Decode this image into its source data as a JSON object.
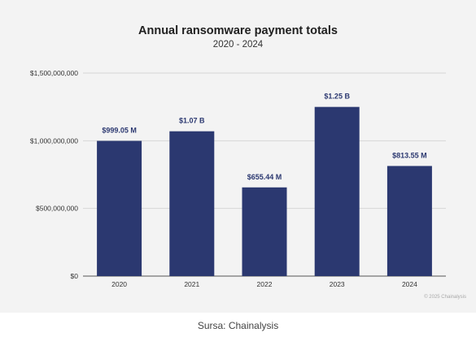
{
  "chart_data": {
    "type": "bar",
    "title": "Annual ransomware payment totals",
    "subtitle": "2020 - 2024",
    "categories": [
      "2020",
      "2021",
      "2022",
      "2023",
      "2024"
    ],
    "values": [
      999050000,
      1070000000,
      655440000,
      1250000000,
      813550000
    ],
    "data_labels": [
      "$999.05 M",
      "$1.07 B",
      "$655.44 M",
      "$1.25 B",
      "$813.55 M"
    ],
    "yticks": [
      0,
      500000000,
      1000000000,
      1500000000
    ],
    "ytick_labels": [
      "$0",
      "$500,000,000",
      "$1,000,000,000",
      "$1,500,000,000"
    ],
    "ylim": [
      0,
      1500000000
    ],
    "xlabel": "",
    "ylabel": "",
    "grid": true,
    "legend": false,
    "bar_color": "#2b3870",
    "label_color": "#2b3870"
  },
  "watermark": "© 2025 Chainalysis",
  "caption": "Sursa: Chainalysis"
}
